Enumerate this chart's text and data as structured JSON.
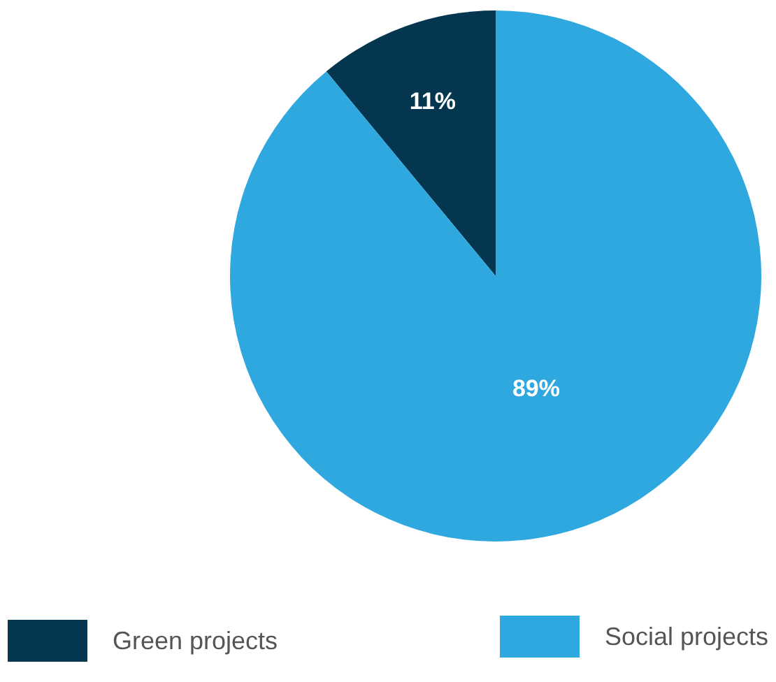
{
  "chart_data": {
    "type": "pie",
    "categories": [
      "Green projects",
      "Social projects"
    ],
    "values": [
      11,
      89
    ],
    "colors": [
      "#04374f",
      "#2ea8df"
    ],
    "value_labels": [
      "11%",
      "89%"
    ],
    "legend": "bottom"
  }
}
